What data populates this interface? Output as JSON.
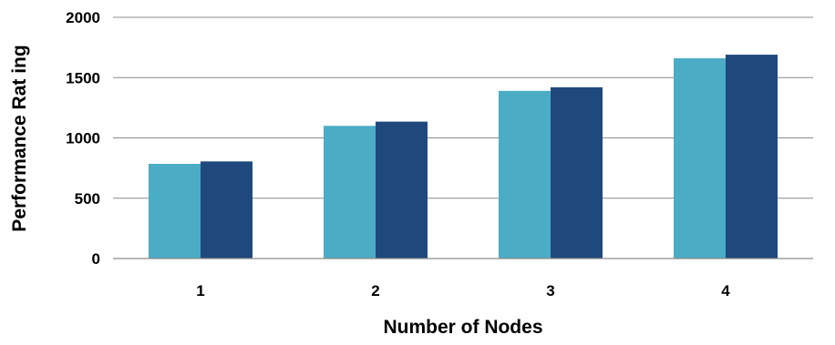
{
  "chart_data": {
    "type": "bar",
    "categories": [
      "1",
      "2",
      "3",
      "4"
    ],
    "series": [
      {
        "values": [
          785,
          1100,
          1390,
          1660
        ],
        "color": "#4BACC6"
      },
      {
        "values": [
          805,
          1135,
          1420,
          1690
        ],
        "color": "#1F497D"
      }
    ],
    "xlabel": "Number of Nodes",
    "ylabel": "Performance Rat ing",
    "ylim": [
      0,
      2000
    ],
    "yticks": [
      "0",
      "500",
      "1000",
      "1500",
      "2000"
    ],
    "grid": true,
    "gridline_color": "#8C8C8C"
  }
}
